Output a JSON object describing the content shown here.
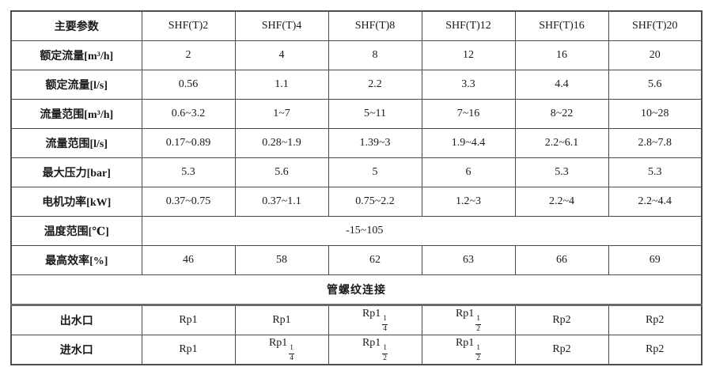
{
  "table": {
    "header": {
      "param_label": "主要参数",
      "models": [
        "SHF(T)2",
        "SHF(T)4",
        "SHF(T)8",
        "SHF(T)12",
        "SHF(T)16",
        "SHF(T)20"
      ]
    },
    "rows": [
      {
        "label": "额定流量[m³/h]",
        "values": [
          "2",
          "4",
          "8",
          "12",
          "16",
          "20"
        ]
      },
      {
        "label": "额定流量[l/s]",
        "values": [
          "0.56",
          "1.1",
          "2.2",
          "3.3",
          "4.4",
          "5.6"
        ]
      },
      {
        "label": "流量范围[m³/h]",
        "values": [
          "0.6~3.2",
          "1~7",
          "5~11",
          "7~16",
          "8~22",
          "10~28"
        ]
      },
      {
        "label": "流量范围[l/s]",
        "values": [
          "0.17~0.89",
          "0.28~1.9",
          "1.39~3",
          "1.9~4.4",
          "2.2~6.1",
          "2.8~7.8"
        ]
      },
      {
        "label": "最大压力[bar]",
        "values": [
          "5.3",
          "5.6",
          "5",
          "6",
          "5.3",
          "5.3"
        ]
      },
      {
        "label": "电机功率[kW]",
        "values": [
          "0.37~0.75",
          "0.37~1.1",
          "0.75~2.2",
          "1.2~3",
          "2.2~4",
          "2.2~4.4"
        ]
      }
    ],
    "temp_row": {
      "label": "温度范围[℃]",
      "value": "-15~105"
    },
    "eff_row": {
      "label": "最高效率[%]",
      "values": [
        "46",
        "58",
        "62",
        "63",
        "66",
        "69"
      ]
    },
    "section_label": "管螺纹连接",
    "conn_rows": [
      {
        "label": "出水口",
        "values": [
          {
            "base": "Rp1"
          },
          {
            "base": "Rp1"
          },
          {
            "base": "Rp1",
            "num": "1",
            "den": "4"
          },
          {
            "base": "Rp1",
            "num": "1",
            "den": "2"
          },
          {
            "base": "Rp2"
          },
          {
            "base": "Rp2"
          }
        ]
      },
      {
        "label": "进水口",
        "values": [
          {
            "base": "Rp1"
          },
          {
            "base": "Rp1",
            "num": "1",
            "den": "4"
          },
          {
            "base": "Rp1",
            "num": "1",
            "den": "2"
          },
          {
            "base": "Rp1",
            "num": "1",
            "den": "2"
          },
          {
            "base": "Rp2"
          },
          {
            "base": "Rp2"
          }
        ]
      }
    ]
  }
}
